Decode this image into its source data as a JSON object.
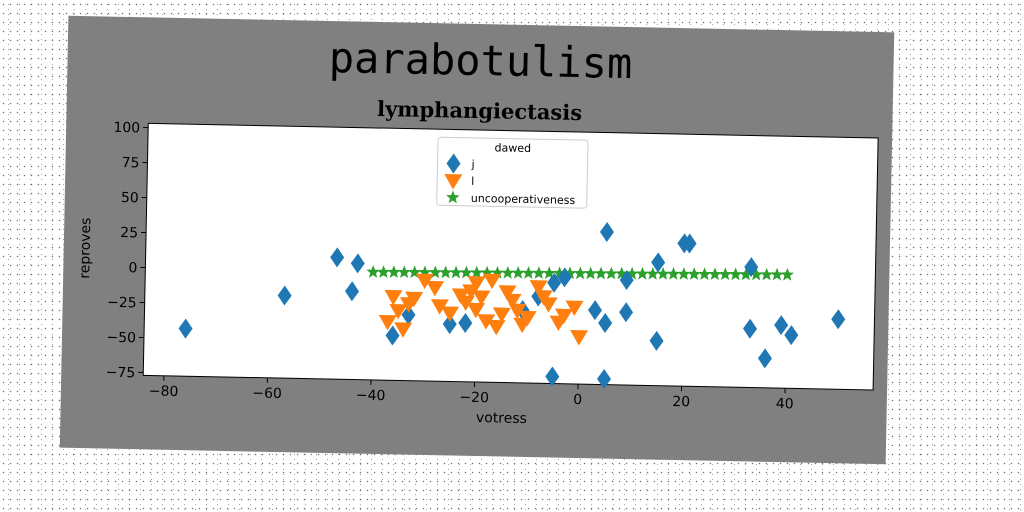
{
  "figure": {
    "title": "parabotulism",
    "subtitle": "lymphangiectasis"
  },
  "chart_data": {
    "type": "scatter",
    "title": "lymphangiectasis",
    "xlabel": "votress",
    "ylabel": "reproves",
    "xlim": [
      -84,
      57
    ],
    "ylim": [
      -77,
      103
    ],
    "xticks": [
      -80,
      -60,
      -40,
      -20,
      0,
      20,
      40
    ],
    "yticks": [
      -75,
      -50,
      -25,
      0,
      25,
      50,
      75,
      100
    ],
    "grid": false,
    "legend": {
      "title": "dawed",
      "placement": "top-center"
    },
    "colors": {
      "j": "#1f77b4",
      "l": "#ff7f0e",
      "uncooperativeness": "#2ca02c"
    },
    "series": [
      {
        "name": "j",
        "marker": "diamond",
        "color": "#1f77b4",
        "x": [
          -76,
          -57,
          -47,
          -43,
          -44,
          -36,
          -33,
          -25,
          -22,
          -11,
          -8,
          -5,
          -3,
          -5,
          3,
          5,
          5,
          5,
          9,
          9,
          15,
          15,
          20,
          21,
          33,
          33,
          36,
          39,
          41,
          50
        ],
        "y": [
          -43,
          -18,
          10,
          6,
          -14,
          -45,
          -30,
          -36,
          -35,
          -25,
          -15,
          -5,
          -1,
          -72,
          -24,
          -33,
          -73,
          32,
          -2,
          -25,
          -45,
          11,
          25,
          25,
          -35,
          9,
          -56,
          -32,
          -39,
          -27
        ]
      },
      {
        "name": "l",
        "marker": "triangle-down",
        "color": "#ff7f0e",
        "x": [
          -36,
          -35,
          -37,
          -34,
          -33,
          -32,
          -30,
          -28,
          -27,
          -25,
          -23,
          -22,
          -21,
          -20,
          -20,
          -19,
          -18,
          -17,
          -16,
          -15,
          -14,
          -13,
          -12,
          -11,
          -10,
          -8,
          -7,
          -6,
          -4,
          -3,
          -1,
          0
        ],
        "y": [
          -17,
          -27,
          -35,
          -40,
          -22,
          -18,
          -5,
          -10,
          -23,
          -28,
          -15,
          -20,
          -12,
          -6,
          -25,
          -16,
          -33,
          -4,
          -37,
          -28,
          -12,
          -18,
          -25,
          -35,
          -30,
          -8,
          -15,
          -20,
          -33,
          -28,
          -22,
          -43
        ]
      },
      {
        "name": "uncooperativeness",
        "marker": "star",
        "color": "#2ca02c",
        "x": [
          -40.0,
          -38.0,
          -36.0,
          -34.0,
          -32.0,
          -30.0,
          -28.0,
          -26.0,
          -24.0,
          -22.0,
          -20.0,
          -18.0,
          -16.0,
          -14.0,
          -12.0,
          -10.0,
          -8.0,
          -6.0,
          -4.0,
          -2.0,
          0.0,
          2.0,
          4.0,
          6.0,
          8.0,
          10.0,
          12.0,
          14.0,
          16.0,
          18.0,
          20.0,
          22.0,
          24.0,
          26.0,
          28.0,
          30.0,
          32.0,
          34.0,
          36.0,
          38.0,
          40.0
        ],
        "y": [
          0.0,
          0.1,
          0.2,
          0.3,
          0.4,
          0.5,
          0.6,
          0.7,
          0.8,
          0.9,
          1.0,
          1.1,
          1.2,
          1.3,
          1.4,
          1.5,
          1.6,
          1.7,
          1.8,
          1.9,
          2.0,
          2.1,
          2.2,
          2.3,
          2.4,
          2.5,
          2.6,
          2.7,
          2.8,
          2.9,
          3.0,
          3.1,
          3.2,
          3.3,
          3.4,
          3.5,
          3.6,
          3.7,
          3.8,
          3.9,
          4.0
        ]
      }
    ]
  }
}
